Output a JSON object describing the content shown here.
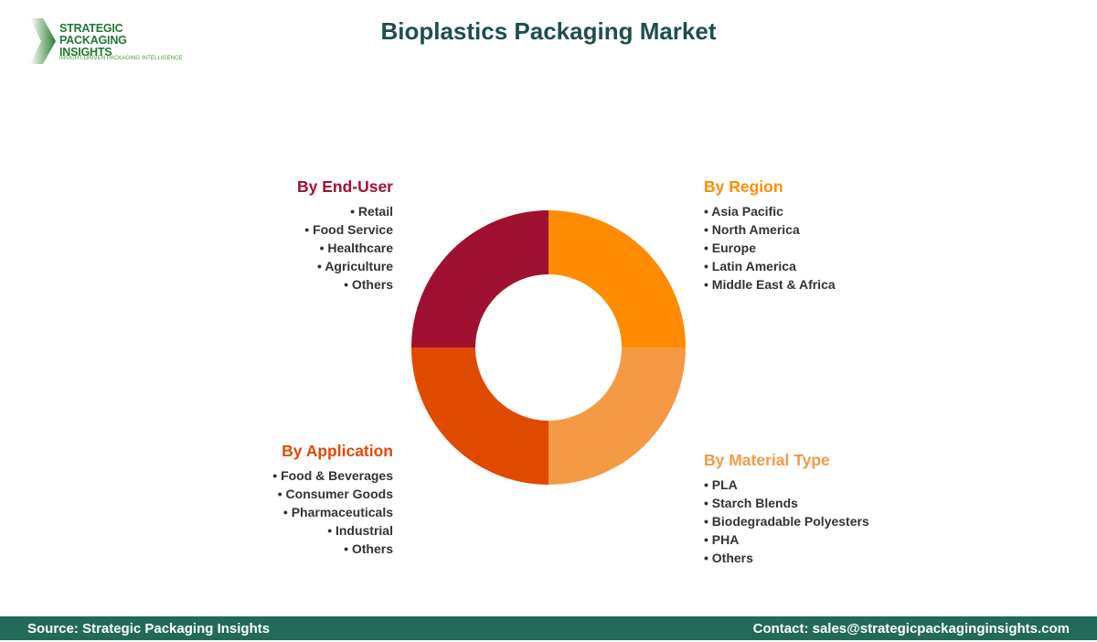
{
  "logo": {
    "line1": "STRATEGIC",
    "line2": "PACKAGING INSIGHTS",
    "tagline": "INSIGHT-DRIVEN PACKAGING INTELLIGENCE"
  },
  "title": "Bioplastics Packaging Market",
  "segments": [
    {
      "title": "By Region",
      "color": "#FF8C00",
      "items": [
        "Asia Pacific",
        "North America",
        "Europe",
        "Latin America",
        "Middle East & Africa"
      ]
    },
    {
      "title": "By Material Type",
      "color": "#F49A45",
      "items": [
        "PLA",
        "Starch Blends",
        "Biodegradable Polyesters",
        "PHA",
        "Others"
      ]
    },
    {
      "title": "By Application",
      "color": "#E04A00",
      "items": [
        "Food & Beverages",
        "Consumer Goods",
        "Pharmaceuticals",
        "Industrial",
        "Others"
      ]
    },
    {
      "title": "By End-User",
      "color": "#A01030",
      "items": [
        "Retail",
        "Food Service",
        "Healthcare",
        "Agriculture",
        "Others"
      ]
    }
  ],
  "footer": {
    "source": "Source: Strategic Packaging Insights",
    "contact": "Contact: sales@strategicpackaginginsights.com"
  }
}
